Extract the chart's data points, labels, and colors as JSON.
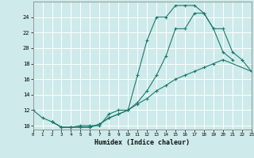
{
  "xlabel": "Humidex (Indice chaleur)",
  "ylabel": "",
  "bg_color": "#ceeaea",
  "grid_color": "#ffffff",
  "line_color": "#1a7a6e",
  "xlim": [
    0,
    23
  ],
  "ylim": [
    9.5,
    26
  ],
  "xticks": [
    0,
    1,
    2,
    3,
    4,
    5,
    6,
    7,
    8,
    9,
    10,
    11,
    12,
    13,
    14,
    15,
    16,
    17,
    18,
    19,
    20,
    21,
    22,
    23
  ],
  "yticks": [
    10,
    12,
    14,
    16,
    18,
    20,
    22,
    24
  ],
  "curve1_x": [
    0,
    1,
    2,
    3,
    4,
    5,
    6,
    7,
    8,
    9,
    10,
    11,
    12,
    13,
    14,
    15,
    16,
    17,
    18,
    19,
    20,
    21
  ],
  "curve1_y": [
    12,
    11,
    10.5,
    9.8,
    9.8,
    10,
    10,
    10,
    11.5,
    12,
    12,
    16.5,
    21,
    24,
    24,
    25.5,
    25.5,
    25.5,
    24.5,
    22.5,
    19.5,
    18.5
  ],
  "curve2_x": [
    2,
    3,
    4,
    5,
    6,
    7,
    8,
    9,
    10,
    11,
    12,
    13,
    14,
    15,
    16,
    17,
    18,
    19,
    20,
    23
  ],
  "curve2_y": [
    10.5,
    9.8,
    9.8,
    9.8,
    9.8,
    10.2,
    11,
    11.5,
    12,
    12.8,
    13.5,
    14.5,
    15.2,
    16,
    16.5,
    17,
    17.5,
    18,
    18.5,
    17
  ],
  "curve3_x": [
    2,
    3,
    4,
    5,
    6,
    7,
    8,
    9,
    10,
    11,
    12,
    13,
    14,
    15,
    16,
    17,
    18,
    19,
    20,
    21,
    22,
    23
  ],
  "curve3_y": [
    10.5,
    9.8,
    9.8,
    9.8,
    9.8,
    10.2,
    11,
    11.5,
    12,
    13,
    14.5,
    16.5,
    19,
    22.5,
    22.5,
    24.5,
    24.5,
    22.5,
    22.5,
    19.5,
    18.5,
    17
  ]
}
